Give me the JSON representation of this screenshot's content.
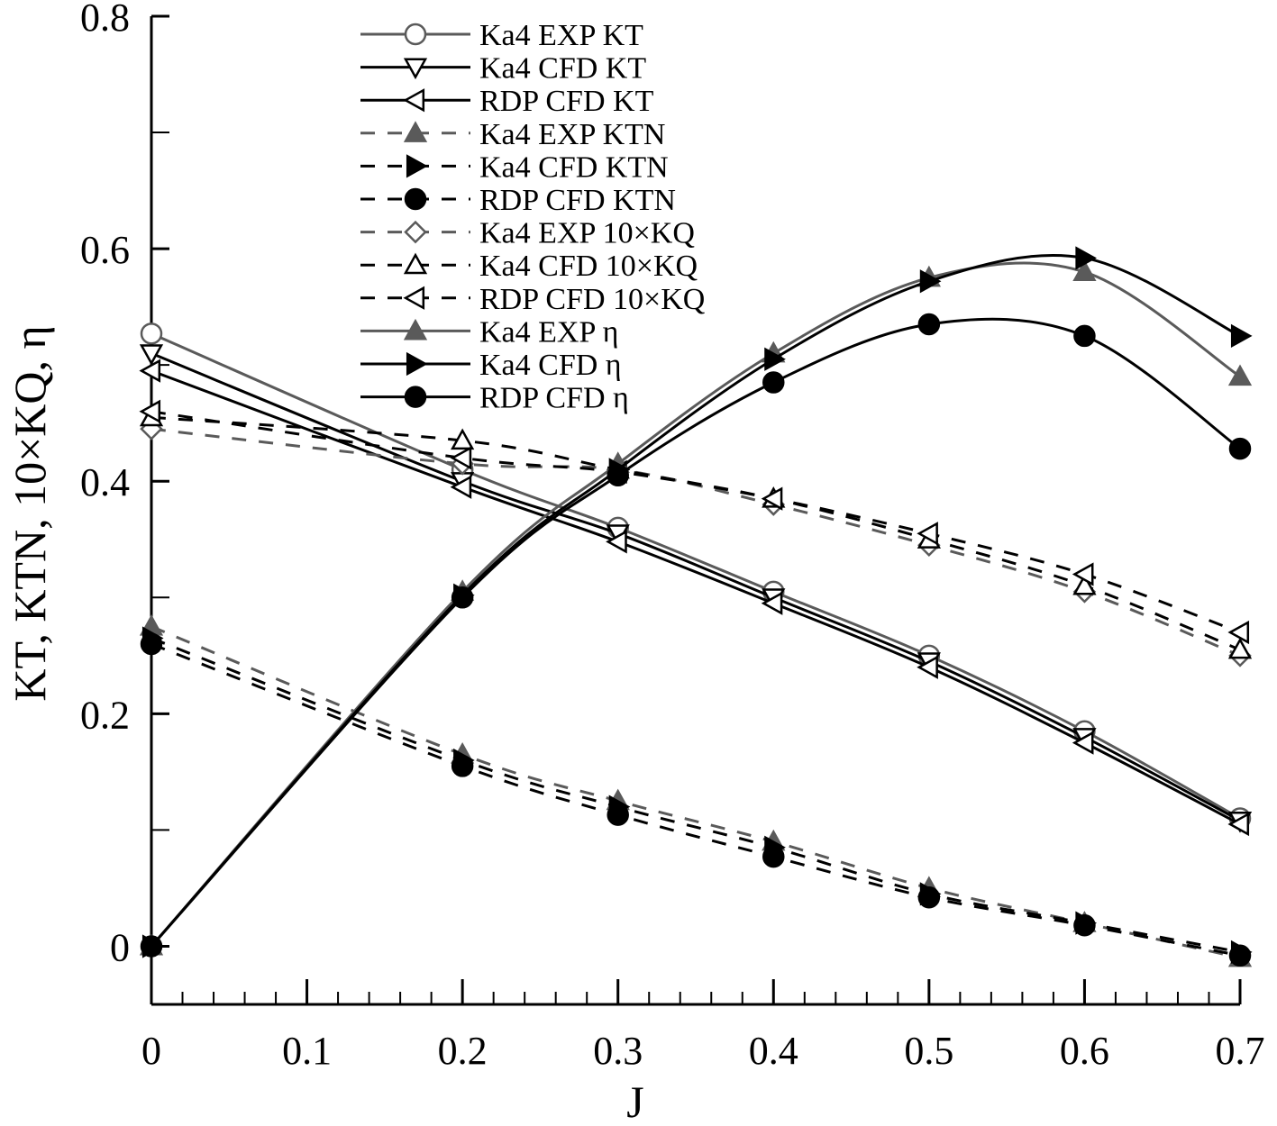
{
  "chart_data": {
    "type": "line",
    "title": "",
    "xlabel": "J",
    "ylabel": "KT, KTN, 10×KQ, η",
    "xlim": [
      0,
      0.7
    ],
    "ylim": [
      -0.05,
      0.8
    ],
    "xticks": [
      0,
      0.1,
      0.2,
      0.3,
      0.4,
      0.5,
      0.6,
      0.7
    ],
    "xtick_labels": [
      "0",
      "0.1",
      "0.2",
      "0.3",
      "0.4",
      "0.5",
      "0.6",
      "0.7"
    ],
    "yticks": [
      0,
      0.2,
      0.4,
      0.6,
      0.8
    ],
    "ytick_labels": [
      "0",
      "0.2",
      "0.4",
      "0.6",
      "0.8"
    ],
    "legend_position": "top-center",
    "x": [
      0,
      0.2,
      0.3,
      0.4,
      0.5,
      0.6,
      0.7
    ],
    "series": [
      {
        "name": "Ka4 EXP KT",
        "color": "#5a5a5a",
        "dash": "solid",
        "marker": "circle-open",
        "values": [
          0.527,
          0.41,
          0.36,
          0.305,
          0.25,
          0.185,
          0.11
        ]
      },
      {
        "name": "Ka4 CFD KT",
        "color": "#000000",
        "dash": "solid",
        "marker": "triangle-down-open",
        "values": [
          0.51,
          0.4,
          0.355,
          0.3,
          0.245,
          0.18,
          0.108
        ]
      },
      {
        "name": "RDP CFD KT",
        "color": "#000000",
        "dash": "solid",
        "marker": "triangle-left-open",
        "values": [
          0.495,
          0.395,
          0.348,
          0.295,
          0.24,
          0.175,
          0.105
        ]
      },
      {
        "name": "Ka4 EXP KTN",
        "color": "#5a5a5a",
        "dash": "dashed",
        "marker": "triangle-up-filled",
        "values": [
          0.275,
          0.165,
          0.125,
          0.09,
          0.05,
          0.02,
          -0.01
        ]
      },
      {
        "name": "Ka4 CFD KTN",
        "color": "#000000",
        "dash": "dashed",
        "marker": "triangle-right-filled",
        "values": [
          0.265,
          0.16,
          0.12,
          0.085,
          0.045,
          0.02,
          -0.005
        ]
      },
      {
        "name": "RDP CFD KTN",
        "color": "#000000",
        "dash": "dashed",
        "marker": "circle-filled",
        "values": [
          0.26,
          0.155,
          0.113,
          0.077,
          0.042,
          0.018,
          -0.008
        ]
      },
      {
        "name": "Ka4 EXP 10×KQ",
        "color": "#5a5a5a",
        "dash": "dashed",
        "marker": "diamond-open",
        "values": [
          0.445,
          0.415,
          0.41,
          0.38,
          0.345,
          0.305,
          0.25
        ]
      },
      {
        "name": "Ka4 CFD 10×KQ",
        "color": "#000000",
        "dash": "dashed",
        "marker": "triangle-up-open",
        "values": [
          0.455,
          0.435,
          0.41,
          0.385,
          0.35,
          0.31,
          0.255
        ]
      },
      {
        "name": "RDP CFD 10×KQ",
        "color": "#000000",
        "dash": "dashed",
        "marker": "triangle-left-open",
        "values": [
          0.46,
          0.42,
          0.408,
          0.385,
          0.355,
          0.32,
          0.27
        ]
      },
      {
        "name": "Ka4 EXP η",
        "color": "#5a5a5a",
        "dash": "solid",
        "marker": "triangle-up-filled",
        "values": [
          0,
          0.305,
          0.415,
          0.51,
          0.575,
          0.58,
          0.49
        ]
      },
      {
        "name": "Ka4 CFD η",
        "color": "#000000",
        "dash": "solid",
        "marker": "triangle-right-filled",
        "values": [
          0,
          0.302,
          0.41,
          0.505,
          0.572,
          0.592,
          0.525
        ]
      },
      {
        "name": "RDP CFD η",
        "color": "#000000",
        "dash": "solid",
        "marker": "circle-filled",
        "values": [
          0,
          0.3,
          0.405,
          0.485,
          0.535,
          0.525,
          0.428
        ]
      }
    ]
  }
}
